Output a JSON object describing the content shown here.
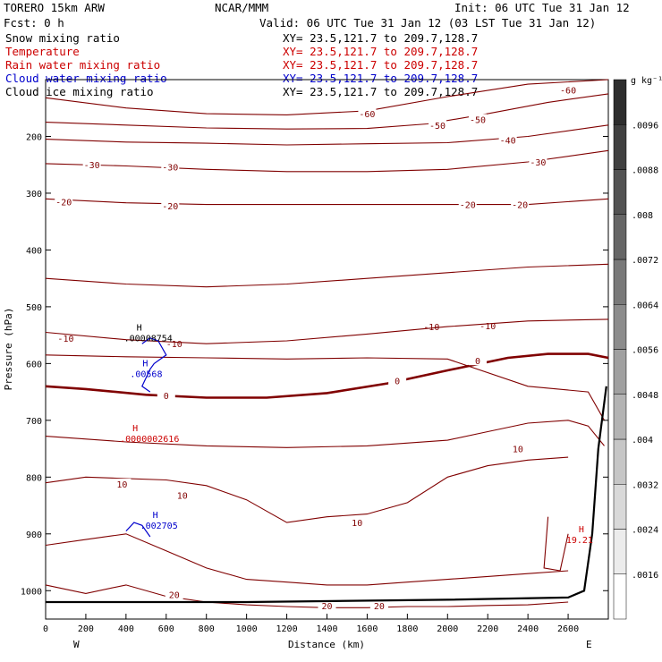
{
  "header": {
    "model": "TORERO  15km ARW",
    "org": "NCAR/MMM",
    "init": "Init: 06 UTC Tue 31 Jan 12",
    "fcst": "Fcst:    0 h",
    "valid": "Valid: 06 UTC Tue 31 Jan 12 (03 LST Tue 31 Jan 12)"
  },
  "fields": [
    {
      "name": "Snow mixing ratio",
      "xy": "XY=  23.5,121.7 to 209.7,128.7",
      "color": "#000000",
      "xy_color": "#000000"
    },
    {
      "name": "Temperature",
      "xy": "XY=  23.5,121.7 to 209.7,128.7",
      "color": "#cc0000",
      "xy_color": "#cc0000"
    },
    {
      "name": "Rain water mixing ratio",
      "xy": "XY=  23.5,121.7 to 209.7,128.7",
      "color": "#cc0000",
      "xy_color": "#cc0000"
    },
    {
      "name": "Cloud water mixing ratio",
      "xy": "XY=  23.5,121.7 to 209.7,128.7",
      "color": "#0000cc",
      "xy_color": "#0000cc"
    },
    {
      "name": "Cloud ice mixing ratio",
      "xy": "XY=  23.5,121.7 to 209.7,128.7",
      "color": "#000000",
      "xy_color": "#000000"
    }
  ],
  "colors": {
    "temperature": "#800000",
    "cloud_water": "#0000cc",
    "rain": "#cc0000",
    "terrain": "#000000"
  },
  "chart_data": {
    "type": "line",
    "xlabel": "Distance (km)",
    "ylabel": "Pressure (hPa)",
    "xlim": [
      0,
      2800
    ],
    "ylim": [
      1050,
      100
    ],
    "xticks": [
      0,
      200,
      400,
      600,
      800,
      1000,
      1200,
      1400,
      1600,
      1800,
      2000,
      2200,
      2400,
      2600
    ],
    "yticks": [
      200,
      300,
      400,
      500,
      600,
      700,
      800,
      900,
      1000
    ],
    "x_end_labels": {
      "left": "W",
      "right": "E"
    },
    "colorbar": {
      "unit": "g kg⁻¹",
      "levels": [
        ".0016",
        ".0024",
        ".0032",
        ".004",
        ".0048",
        ".0056",
        ".0064",
        ".0072",
        ".008",
        ".0088",
        ".0096"
      ]
    },
    "temperature_contours": [
      {
        "level": -60,
        "bold": false,
        "x": [
          0,
          400,
          800,
          1200,
          1600,
          2000,
          2400,
          2800
        ],
        "y": [
          132,
          150,
          160,
          162,
          155,
          130,
          108,
          100
        ],
        "labels": [
          {
            "text": "-60",
            "x": 1600,
            "y": 160
          },
          {
            "text": "-60",
            "x": 2600,
            "y": 118
          }
        ]
      },
      {
        "level": -50,
        "bold": false,
        "x": [
          0,
          400,
          800,
          1200,
          1600,
          1900,
          2200,
          2500,
          2800
        ],
        "y": [
          175,
          180,
          185,
          187,
          186,
          178,
          160,
          140,
          125
        ],
        "labels": [
          {
            "text": "-50",
            "x": 1950,
            "y": 180
          },
          {
            "text": "-50",
            "x": 2150,
            "y": 170
          }
        ]
      },
      {
        "level": -40,
        "bold": false,
        "x": [
          0,
          400,
          800,
          1200,
          1600,
          2000,
          2400,
          2800
        ],
        "y": [
          205,
          210,
          212,
          215,
          213,
          211,
          200,
          180
        ],
        "labels": [
          {
            "text": "-40",
            "x": 2300,
            "y": 206
          }
        ]
      },
      {
        "level": -30,
        "bold": false,
        "x": [
          0,
          400,
          800,
          1200,
          1600,
          2000,
          2400,
          2800
        ],
        "y": [
          248,
          252,
          258,
          262,
          262,
          258,
          245,
          225
        ],
        "labels": [
          {
            "text": "-30",
            "x": 230,
            "y": 250
          },
          {
            "text": "-30",
            "x": 620,
            "y": 254
          },
          {
            "text": "-30",
            "x": 2450,
            "y": 245
          }
        ]
      },
      {
        "level": -20,
        "bold": false,
        "x": [
          0,
          400,
          800,
          1200,
          1600,
          2000,
          2400,
          2800
        ],
        "y": [
          310,
          317,
          320,
          320,
          320,
          320,
          320,
          310
        ],
        "labels": [
          {
            "text": "-20",
            "x": 90,
            "y": 315
          },
          {
            "text": "-20",
            "x": 620,
            "y": 322
          },
          {
            "text": "-20",
            "x": 2100,
            "y": 320
          },
          {
            "text": "-20",
            "x": 2360,
            "y": 320
          }
        ]
      },
      {
        "level": -10,
        "bold": false,
        "x": [
          0,
          400,
          800,
          1200,
          1600,
          2000,
          2400,
          2800
        ],
        "y": [
          450,
          460,
          465,
          460,
          450,
          440,
          430,
          425
        ],
        "labels": [
          {
            "text": "-10",
            "x": 100,
            "y": 555
          },
          {
            "text": "-10",
            "x": 640,
            "y": 565
          },
          {
            "text": "-10",
            "x": 1920,
            "y": 535
          },
          {
            "text": "-10",
            "x": 2200,
            "y": 533
          }
        ]
      },
      {
        "level": -10,
        "bold": false,
        "x": [
          0,
          400,
          800,
          1200,
          1600,
          2000,
          2400,
          2800
        ],
        "y": [
          545,
          558,
          565,
          560,
          548,
          535,
          525,
          522
        ],
        "labels": []
      },
      {
        "level": 0,
        "bold": true,
        "x": [
          0,
          200,
          500,
          800,
          1100,
          1400,
          1700,
          2000,
          2300,
          2500,
          2700,
          2800
        ],
        "y": [
          640,
          645,
          655,
          660,
          660,
          652,
          635,
          612,
          590,
          583,
          583,
          590
        ],
        "labels": [
          {
            "text": "0",
            "x": 600,
            "y": 656
          },
          {
            "text": "0",
            "x": 1750,
            "y": 630
          },
          {
            "text": "0",
            "x": 2150,
            "y": 595
          }
        ]
      },
      {
        "level": 0,
        "bold": false,
        "x": [
          0,
          400,
          800,
          1200,
          1600,
          2000,
          2400,
          2700,
          2780
        ],
        "y": [
          585,
          588,
          590,
          592,
          590,
          592,
          640,
          650,
          700
        ],
        "labels": []
      },
      {
        "level": 10,
        "bold": false,
        "x": [
          0,
          400,
          800,
          1200,
          1600,
          2000,
          2200,
          2400,
          2600,
          2700,
          2780
        ],
        "y": [
          728,
          738,
          745,
          748,
          745,
          735,
          720,
          705,
          700,
          710,
          745
        ],
        "labels": [
          {
            "text": "10",
            "x": 2350,
            "y": 750
          }
        ]
      },
      {
        "level": 10,
        "bold": false,
        "x": [
          0,
          200,
          600,
          800,
          1000,
          1200,
          1400,
          1600,
          1800,
          2000,
          2200,
          2400,
          2600
        ],
        "y": [
          810,
          800,
          805,
          815,
          840,
          880,
          870,
          865,
          845,
          800,
          780,
          770,
          765
        ],
        "labels": [
          {
            "text": "10",
            "x": 380,
            "y": 812
          },
          {
            "text": "10",
            "x": 680,
            "y": 832
          },
          {
            "text": "10",
            "x": 1550,
            "y": 880
          }
        ]
      },
      {
        "level": 10,
        "bold": false,
        "x": [
          2500,
          2480,
          2560,
          2600
        ],
        "y": [
          870,
          960,
          965,
          900
        ],
        "labels": []
      },
      {
        "level": 20,
        "bold": false,
        "x": [
          0,
          200,
          400,
          600,
          800,
          1000,
          1200,
          1400,
          1600,
          1800,
          2000,
          2200,
          2400,
          2600
        ],
        "y": [
          920,
          910,
          900,
          930,
          960,
          980,
          985,
          990,
          990,
          985,
          980,
          975,
          970,
          965
        ],
        "labels": []
      },
      {
        "level": 20,
        "bold": false,
        "x": [
          0,
          200,
          400,
          600,
          800,
          1000,
          1200,
          1400,
          1600,
          1800,
          2000,
          2200,
          2400,
          2600
        ],
        "y": [
          990,
          1005,
          990,
          1010,
          1020,
          1025,
          1028,
          1030,
          1030,
          1028,
          1028,
          1026,
          1025,
          1020
        ],
        "labels": [
          {
            "text": "20",
            "x": 640,
            "y": 1007
          },
          {
            "text": "20",
            "x": 1400,
            "y": 1026
          },
          {
            "text": "20",
            "x": 1660,
            "y": 1026
          }
        ]
      }
    ],
    "terrain": {
      "x": [
        0,
        1000,
        2000,
        2600,
        2680,
        2720,
        2750,
        2790
      ],
      "y": [
        1020,
        1020,
        1016,
        1012,
        1000,
        900,
        750,
        640
      ]
    },
    "cloud_water_contours": [
      {
        "x": [
          480,
          500,
          520,
          560,
          600,
          540,
          520,
          500,
          480,
          520
        ],
        "y": [
          565,
          560,
          555,
          560,
          585,
          600,
          610,
          625,
          640,
          650
        ]
      },
      {
        "x": [
          400,
          440,
          480,
          520
        ],
        "y": [
          895,
          880,
          885,
          905
        ]
      }
    ],
    "annotations": [
      {
        "marker": "H",
        "value": ".00008754",
        "x": 390,
        "y": 545,
        "color": "#000000"
      },
      {
        "marker": "H",
        "value": ".00568",
        "x": 420,
        "y": 608,
        "color": "#0000cc"
      },
      {
        "marker": "H",
        "value": ".0000002616",
        "x": 370,
        "y": 722,
        "color": "#cc0000"
      },
      {
        "marker": "H",
        "value": ".002705",
        "x": 470,
        "y": 875,
        "color": "#0000cc"
      },
      {
        "marker": "H",
        "value": "19.21",
        "x": 2590,
        "y": 900,
        "color": "#cc0000"
      }
    ]
  }
}
